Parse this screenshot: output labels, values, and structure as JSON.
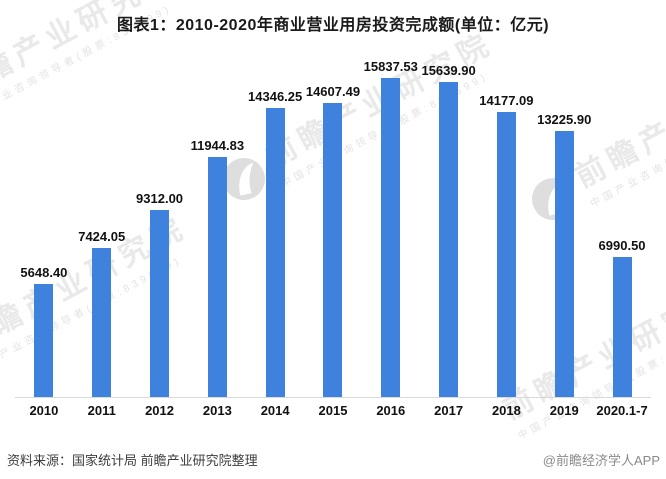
{
  "title": "图表1：2010-2020年商业营业用房投资完成额(单位：亿元)",
  "chart_data": {
    "type": "bar",
    "title": "图表1：2010-2020年商业营业用房投资完成额(单位：亿元)",
    "unit": "亿元",
    "categories": [
      "2010",
      "2011",
      "2012",
      "2013",
      "2014",
      "2015",
      "2016",
      "2017",
      "2018",
      "2019",
      "2020.1-7"
    ],
    "values": [
      5648.4,
      7424.05,
      9312.0,
      11944.83,
      14346.25,
      14607.49,
      15837.53,
      15639.9,
      14177.09,
      13225.9,
      6990.5
    ],
    "value_labels": [
      "5648.40",
      "7424.05",
      "9312.00",
      "11944.83",
      "14346.25",
      "14607.49",
      "15837.53",
      "15639.90",
      "14177.09",
      "13225.90",
      "6990.50"
    ],
    "xlabel": "",
    "ylabel": "",
    "ylim": [
      0,
      16500
    ],
    "grid": false,
    "legend_position": "none",
    "bar_color": "#3F82DE",
    "axis_line_color": "#d9d9d9"
  },
  "footer": {
    "source": "资料来源：国家统计局 前瞻产业研究院整理",
    "credit": "@前瞻经济学人APP"
  },
  "watermark": {
    "big_text": "前瞻产业研究院",
    "small_text": "中国产业咨询领导者(股票:839599)",
    "logo_color": "#dedede"
  }
}
